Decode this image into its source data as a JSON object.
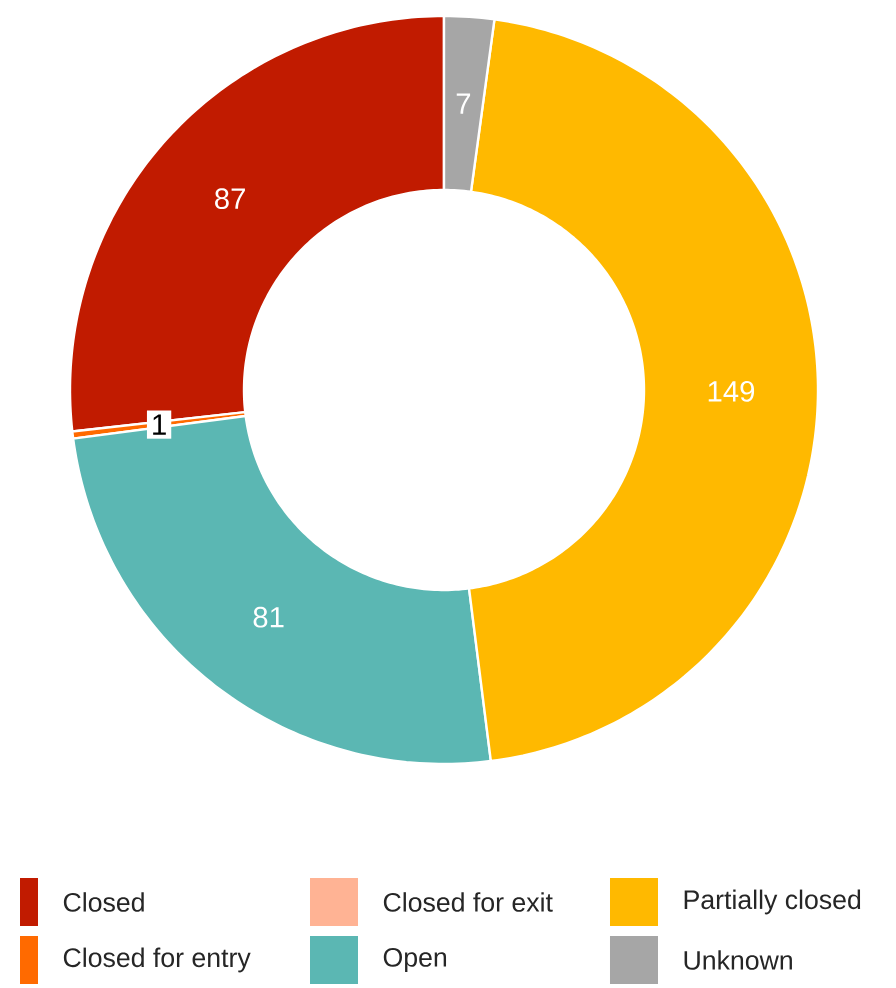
{
  "chart_data": {
    "type": "donut",
    "categories": [
      "Closed",
      "Closed for entry",
      "Closed for exit",
      "Open",
      "Partially closed",
      "Unknown"
    ],
    "values": [
      87,
      1,
      0,
      81,
      149,
      7
    ],
    "colors": [
      "#c11b00",
      "#ff6a00",
      "#ffb394",
      "#5bb7b3",
      "#ffb900",
      "#a6a6a6"
    ],
    "value_labels": [
      "87",
      "1",
      null,
      "81",
      "149",
      "7"
    ],
    "legend": "bottom"
  }
}
